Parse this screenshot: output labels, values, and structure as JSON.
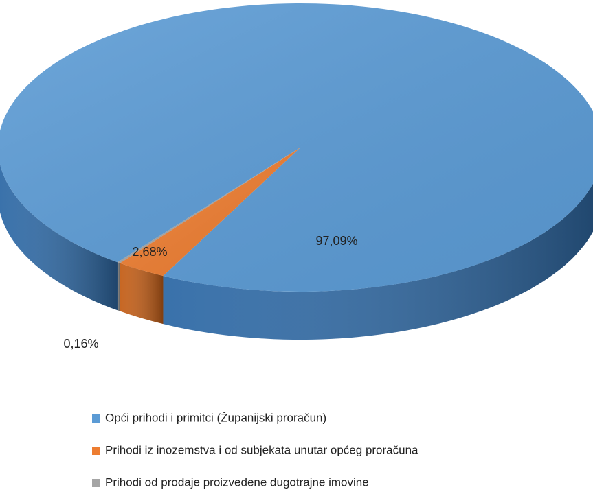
{
  "chart_data": {
    "type": "pie",
    "categories": [
      "Opći prihodi i primitci (Županijski proračun)",
      "Prihodi iz inozemstva i od subjekata unutar općeg proračuna",
      "Prihodi od prodaje proizvedene dugotrajne imovine"
    ],
    "values": [
      97.09,
      2.68,
      0.16
    ],
    "value_labels": [
      "97,09%",
      "2,68%",
      "0,16%"
    ],
    "colors": [
      "#5b9bd5",
      "#ed7d31",
      "#a5a5a5"
    ],
    "side_colors": [
      "#2f6aa6",
      "#c45f18",
      "#7a7a7a"
    ]
  }
}
